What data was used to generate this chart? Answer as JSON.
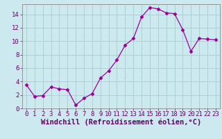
{
  "x": [
    0,
    1,
    2,
    3,
    4,
    5,
    6,
    7,
    8,
    9,
    10,
    11,
    12,
    13,
    14,
    15,
    16,
    17,
    18,
    19,
    20,
    21,
    22,
    23
  ],
  "y": [
    3.5,
    1.8,
    1.9,
    3.2,
    2.9,
    2.8,
    0.5,
    1.5,
    2.2,
    4.5,
    5.6,
    7.2,
    9.4,
    10.4,
    13.6,
    15.0,
    14.8,
    14.2,
    14.1,
    11.7,
    8.5,
    10.4,
    10.3,
    10.2
  ],
  "line_color": "#990099",
  "marker": "D",
  "marker_size": 2.5,
  "background_color": "#cce9f0",
  "grid_color": "#aacccc",
  "xlabel": "Windchill (Refroidissement éolien,°C)",
  "ylabel": "",
  "ylim": [
    0,
    15.5
  ],
  "xlim": [
    -0.5,
    23.5
  ],
  "yticks": [
    0,
    2,
    4,
    6,
    8,
    10,
    12,
    14
  ],
  "xticks": [
    0,
    1,
    2,
    3,
    4,
    5,
    6,
    7,
    8,
    9,
    10,
    11,
    12,
    13,
    14,
    15,
    16,
    17,
    18,
    19,
    20,
    21,
    22,
    23
  ],
  "tick_label_fontsize": 6.5,
  "xlabel_fontsize": 7.5,
  "axis_color": "#660066",
  "tick_color": "#660066",
  "spine_color": "#888888"
}
